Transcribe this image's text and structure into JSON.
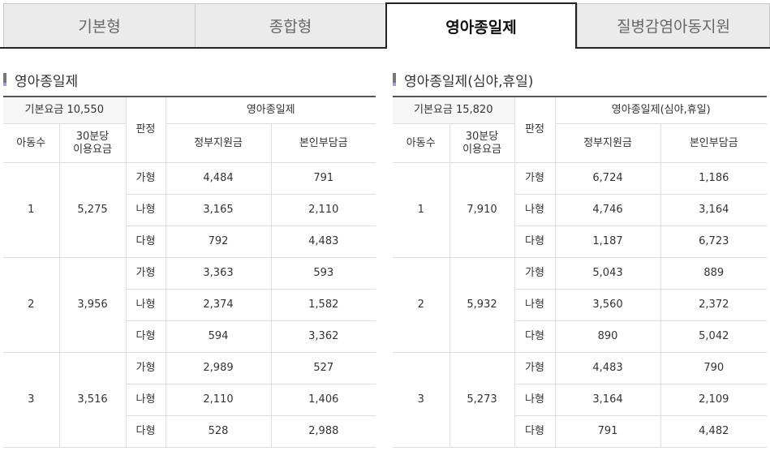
{
  "tabs": [
    "기본형",
    "종합형",
    "영아종일제",
    "질병감염아동지원"
  ],
  "tables": [
    {
      "title": "영아종일제",
      "base_fee": "기본요금 10,550",
      "judgment_header": "판정",
      "group_header": "영아종일제",
      "headers": [
        "아동수",
        "30분당 이용요금",
        "정부지원금",
        "본인부담금"
      ],
      "groups": [
        {
          "children": "1",
          "rate": "5,275",
          "rows": [
            [
              "가형",
              "4,484",
              "791"
            ],
            [
              "나형",
              "3,165",
              "2,110"
            ],
            [
              "다형",
              "792",
              "4,483"
            ]
          ]
        },
        {
          "children": "2",
          "rate": "3,956",
          "rows": [
            [
              "가형",
              "3,363",
              "593"
            ],
            [
              "나형",
              "2,374",
              "1,582"
            ],
            [
              "다형",
              "594",
              "3,362"
            ]
          ]
        },
        {
          "children": "3",
          "rate": "3,516",
          "rows": [
            [
              "가형",
              "2,989",
              "527"
            ],
            [
              "나형",
              "2,110",
              "1,406"
            ],
            [
              "다형",
              "528",
              "2,988"
            ]
          ]
        }
      ]
    },
    {
      "title": "영아종일제(심야,휴일)",
      "base_fee": "기본요금 15,820",
      "judgment_header": "판정",
      "group_header": "영아종일제(심야,휴일)",
      "headers": [
        "아동수",
        "30분당 이용요금",
        "정부지원금",
        "본인부담금"
      ],
      "groups": [
        {
          "children": "1",
          "rate": "7,910",
          "rows": [
            [
              "가형",
              "6,724",
              "1,186"
            ],
            [
              "나형",
              "4,746",
              "3,164"
            ],
            [
              "다형",
              "1,187",
              "6,723"
            ]
          ]
        },
        {
          "children": "2",
          "rate": "5,932",
          "rows": [
            [
              "가형",
              "5,043",
              "889"
            ],
            [
              "나형",
              "3,560",
              "2,372"
            ],
            [
              "다형",
              "890",
              "5,042"
            ]
          ]
        },
        {
          "children": "3",
          "rate": "5,273",
          "rows": [
            [
              "가형",
              "4,483",
              "790"
            ],
            [
              "나형",
              "3,164",
              "2,109"
            ],
            [
              "다형",
              "791",
              "4,482"
            ]
          ]
        }
      ]
    }
  ]
}
